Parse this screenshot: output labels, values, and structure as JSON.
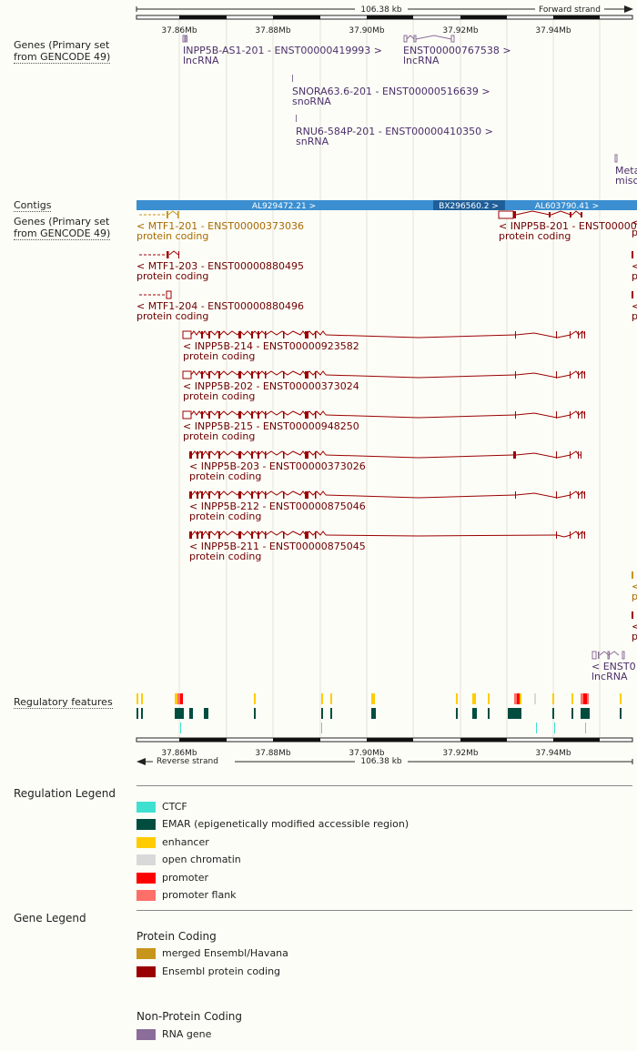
{
  "scale": {
    "top": {
      "span": "106.38 kb",
      "strand": "Forward strand"
    },
    "bottom": {
      "span": "106.38 kb",
      "strand": "Reverse strand"
    },
    "ticks": [
      "37.86Mb",
      "37.88Mb",
      "37.90Mb",
      "37.92Mb",
      "37.94Mb"
    ]
  },
  "track_labels": {
    "genes_fwd": [
      "Genes (Primary set",
      "from GENCODE 49)"
    ],
    "contigs": "Contigs",
    "genes_rev": [
      "Genes (Primary set",
      "from GENCODE 49)"
    ],
    "regulatory": "Regulatory features"
  },
  "contigs": [
    "AL929472.21 >",
    "BX296560.2 >",
    "AL603790.41 >"
  ],
  "fwd_genes": [
    {
      "name": "INPP5B-AS1-201 - ENST00000419993 >",
      "biotype": "lncRNA"
    },
    {
      "name": "ENST00000767538 >",
      "biotype": "lncRNA"
    },
    {
      "name": "SNORA63.6-201 - ENST00000516639 >",
      "biotype": "snoRNA"
    },
    {
      "name": "RNU6-584P-201 - ENST00000410350 >",
      "biotype": "snRNA"
    },
    {
      "name": "Meta",
      "biotype": "misc"
    }
  ],
  "rev_genes": [
    {
      "name": "< MTF1-201 - ENST00000373036",
      "biotype": "protein coding"
    },
    {
      "name": "< INPP5B-201 - ENST00000373",
      "biotype": "protein coding"
    },
    {
      "name": "< MTF1-203 - ENST00000880495",
      "biotype": "protein coding"
    },
    {
      "name": "< MTF1-204 - ENST00000880496",
      "biotype": "protein coding"
    },
    {
      "name": "< INPP5B-214 - ENST00000923582",
      "biotype": "protein coding"
    },
    {
      "name": "< INPP5B-202 - ENST00000373024",
      "biotype": "protein coding"
    },
    {
      "name": "< INPP5B-215 - ENST00000948250",
      "biotype": "protein coding"
    },
    {
      "name": "< INPP5B-203 - ENST00000373026",
      "biotype": "protein coding"
    },
    {
      "name": "< INPP5B-212 - ENST00000875046",
      "biotype": "protein coding"
    },
    {
      "name": "< INPP5B-211 - ENST00000875045",
      "biotype": "protein coding"
    },
    {
      "name": "< ENST0",
      "biotype": "lncRNA"
    },
    {
      "name": "<",
      "biotype": "p"
    },
    {
      "name": "<",
      "biotype": "p"
    },
    {
      "name": "<",
      "biotype": "p"
    },
    {
      "name": "<",
      "biotype": "p"
    },
    {
      "name": "<",
      "biotype": "p"
    }
  ],
  "colors": {
    "merged": "#c8951c",
    "ensembl_coding": "#9b0000",
    "rna_gene": "#8a6e99",
    "lnc_text": "#4b2f6a",
    "coding_text": "#6e0000",
    "merged_text": "#a86a00",
    "contig": "#3b8fd0",
    "contig_dark": "#1f5f99"
  },
  "legend": {
    "regulation_title": "Regulation Legend",
    "regulation": [
      {
        "label": "CTCF",
        "color": "#40e0d0"
      },
      {
        "label": "EMAR (epigenetically modified accessible region)",
        "color": "#004d40"
      },
      {
        "label": "enhancer",
        "color": "#ffcc00"
      },
      {
        "label": "open chromatin",
        "color": "#d9d9d9"
      },
      {
        "label": "promoter",
        "color": "#ff0000"
      },
      {
        "label": "promoter flank",
        "color": "#ff6f69"
      }
    ],
    "gene_title": "Gene Legend",
    "protein_coding_title": "Protein Coding",
    "protein_coding": [
      {
        "label": "merged Ensembl/Havana",
        "color": "#c8951c"
      },
      {
        "label": "Ensembl protein coding",
        "color": "#9b0000"
      }
    ],
    "non_coding_title": "Non-Protein Coding",
    "non_coding": [
      {
        "label": "RNA gene",
        "color": "#8a6e99"
      }
    ]
  }
}
